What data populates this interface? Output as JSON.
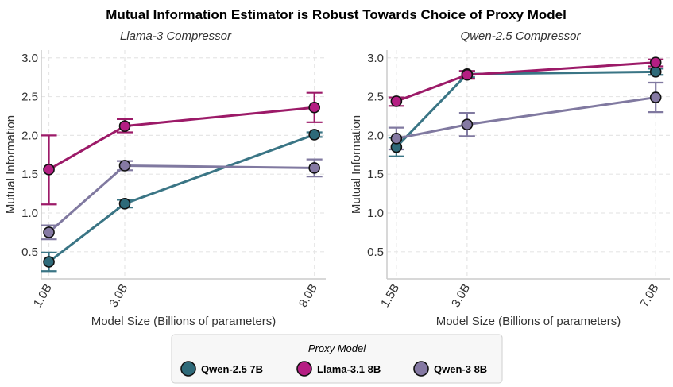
{
  "figure_title": "Mutual Information Estimator is Robust Towards Choice of Proxy Model",
  "legend": {
    "title": "Proxy Model",
    "placement": "bottom-center"
  },
  "colors": {
    "Qwen-2.5 7B": "#3a7585",
    "Llama-3.1 8B": "#9c1a68",
    "Qwen-3 8B": "#8079a0",
    "Qwen-2.5 7B_marker": "#2e6a79",
    "Llama-3.1 8B_marker": "#b51e83",
    "Qwen-3 8B_marker": "#8579a3",
    "grid": "#e6e6e6",
    "axis": "#cccccc"
  },
  "chart_data": [
    {
      "type": "line",
      "title": "Llama-3 Compressor",
      "xlabel": "Model Size (Billions of parameters)",
      "ylabel": "Mutual Information",
      "x": [
        1.0,
        3.0,
        8.0
      ],
      "x_tick_labels": [
        "1.0B",
        "3.0B",
        "8.0B"
      ],
      "y_ticks": [
        0.5,
        1.0,
        1.5,
        2.0,
        2.5,
        3.0
      ],
      "y_tick_labels": [
        "0.5",
        "1.0",
        "1.5",
        "2.0",
        "2.5",
        "3.0"
      ],
      "xlim": [
        0.8,
        8.3
      ],
      "ylim": [
        0.15,
        3.1
      ],
      "grid": true,
      "series": [
        {
          "name": "Qwen-2.5 7B",
          "values": [
            0.37,
            1.12,
            2.01
          ],
          "err_low": [
            0.25,
            1.07,
            1.98
          ],
          "err_high": [
            0.49,
            1.17,
            2.04
          ]
        },
        {
          "name": "Llama-3.1 8B",
          "values": [
            1.56,
            2.12,
            2.36
          ],
          "err_low": [
            1.11,
            2.04,
            2.17
          ],
          "err_high": [
            2.0,
            2.21,
            2.55
          ]
        },
        {
          "name": "Qwen-3 8B",
          "values": [
            0.75,
            1.61,
            1.58
          ],
          "err_low": [
            0.66,
            1.55,
            1.47
          ],
          "err_high": [
            0.84,
            1.67,
            1.69
          ]
        }
      ]
    },
    {
      "type": "line",
      "title": "Qwen-2.5 Compressor",
      "xlabel": "Model Size (Billions of parameters)",
      "ylabel": "Mutual Information",
      "x": [
        1.5,
        3.0,
        7.0
      ],
      "x_tick_labels": [
        "1.5B",
        "3.0B",
        "7.0B"
      ],
      "y_ticks": [
        0.5,
        1.0,
        1.5,
        2.0,
        2.5,
        3.0
      ],
      "y_tick_labels": [
        "0.5",
        "1.0",
        "1.5",
        "2.0",
        "2.5",
        "3.0"
      ],
      "xlim": [
        1.3,
        7.3
      ],
      "ylim": [
        0.15,
        3.1
      ],
      "grid": true,
      "series": [
        {
          "name": "Qwen-2.5 7B",
          "values": [
            1.85,
            2.79,
            2.82
          ],
          "err_low": [
            1.73,
            2.75,
            2.78
          ],
          "err_high": [
            1.97,
            2.83,
            2.86
          ]
        },
        {
          "name": "Llama-3.1 8B",
          "values": [
            2.44,
            2.78,
            2.94
          ],
          "err_low": [
            2.38,
            2.73,
            2.89
          ],
          "err_high": [
            2.49,
            2.83,
            2.98
          ]
        },
        {
          "name": "Qwen-3 8B",
          "values": [
            1.96,
            2.14,
            2.49
          ],
          "err_low": [
            1.82,
            1.99,
            2.3
          ],
          "err_high": [
            2.1,
            2.29,
            2.68
          ]
        }
      ]
    }
  ]
}
